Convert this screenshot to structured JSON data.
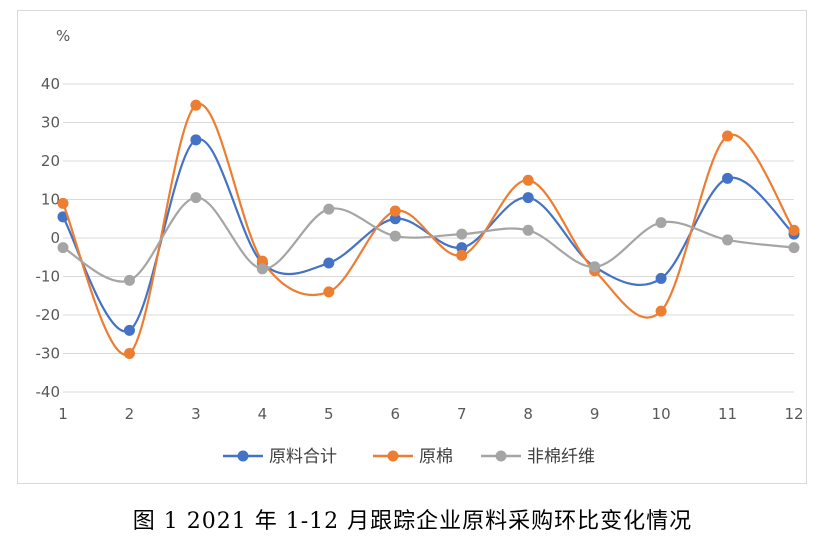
{
  "caption": "图 1   2021 年 1-12 月跟踪企业原料采购环比变化情况",
  "chart_data": {
    "type": "line",
    "unit_label": "%",
    "categories": [
      "1",
      "2",
      "3",
      "4",
      "5",
      "6",
      "7",
      "8",
      "9",
      "10",
      "11",
      "12"
    ],
    "ylim": [
      -40,
      40
    ],
    "yticks": [
      40,
      30,
      20,
      10,
      0,
      -10,
      -20,
      -30,
      -40
    ],
    "smooth": true,
    "grid": true,
    "legend_position": "bottom",
    "series": [
      {
        "name": "原料合计",
        "color": "#4472C4",
        "values": [
          5.5,
          -24,
          25.5,
          -6.5,
          -6.5,
          5,
          -2.5,
          10.5,
          -7.5,
          -10.5,
          15.5,
          1
        ]
      },
      {
        "name": "原棉",
        "color": "#ED7D31",
        "values": [
          9,
          -30,
          34.5,
          -6,
          -14,
          7,
          -4.5,
          15,
          -8.5,
          -19,
          26.5,
          2
        ]
      },
      {
        "name": "非棉纤维",
        "color": "#A5A5A5",
        "values": [
          -2.5,
          -11,
          10.5,
          -8,
          7.5,
          0.5,
          1,
          2,
          -7.5,
          4,
          -0.5,
          -2.5
        ]
      }
    ]
  }
}
